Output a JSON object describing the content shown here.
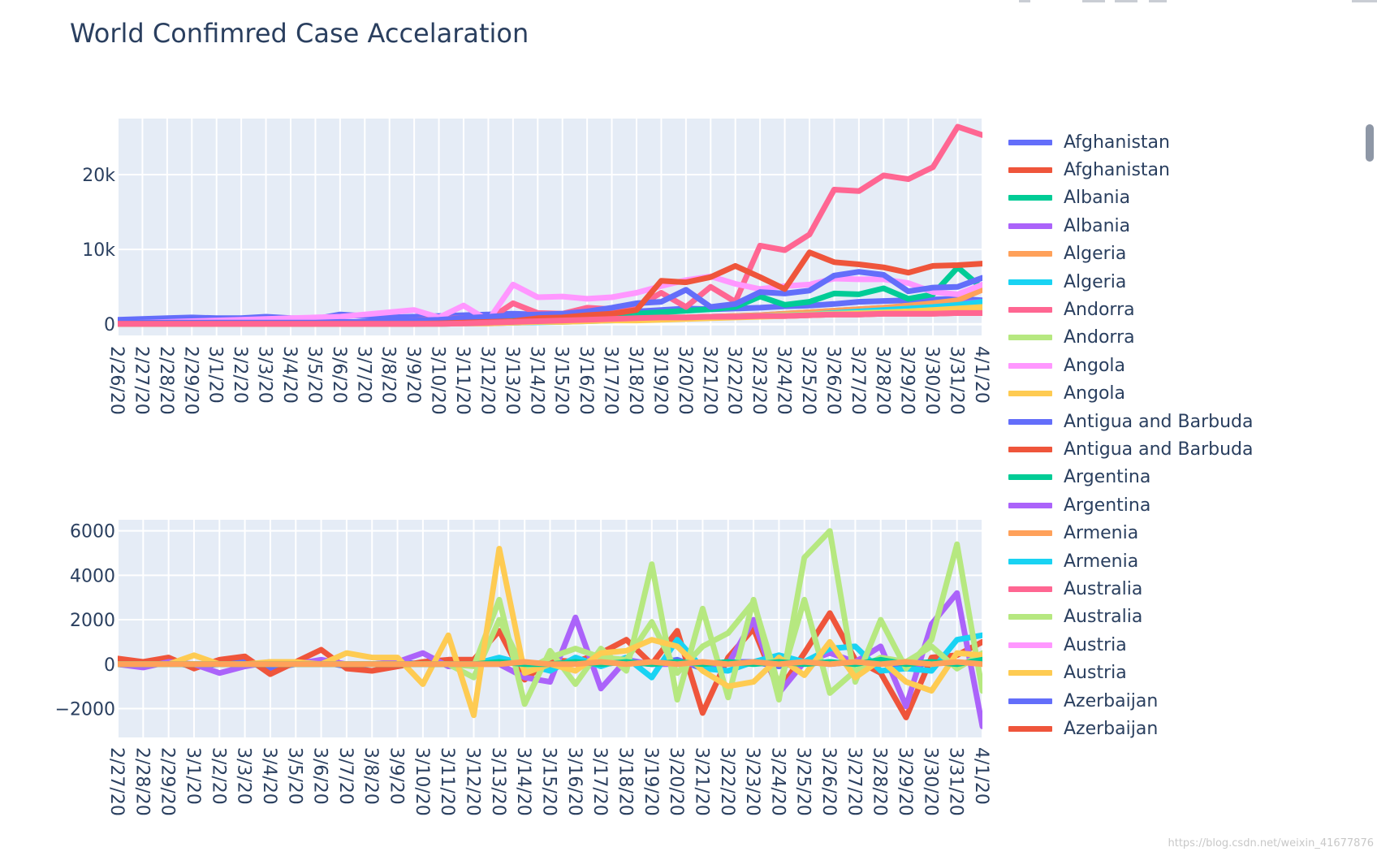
{
  "title": "World Confimred Case Accelaration",
  "watermark": "https://blog.csdn.net/weixin_41677876",
  "legend": [
    {
      "name": "Afghanistan",
      "color": "#636efa"
    },
    {
      "name": "Afghanistan",
      "color": "#ef553b"
    },
    {
      "name": "Albania",
      "color": "#00cc96"
    },
    {
      "name": "Albania",
      "color": "#ab63fa"
    },
    {
      "name": "Algeria",
      "color": "#ffa15a"
    },
    {
      "name": "Algeria",
      "color": "#19d3f3"
    },
    {
      "name": "Andorra",
      "color": "#ff6692"
    },
    {
      "name": "Andorra",
      "color": "#b6e880"
    },
    {
      "name": "Angola",
      "color": "#ff97ff"
    },
    {
      "name": "Angola",
      "color": "#fecb52"
    },
    {
      "name": "Antigua and Barbuda",
      "color": "#636efa"
    },
    {
      "name": "Antigua and Barbuda",
      "color": "#ef553b"
    },
    {
      "name": "Argentina",
      "color": "#00cc96"
    },
    {
      "name": "Argentina",
      "color": "#ab63fa"
    },
    {
      "name": "Armenia",
      "color": "#ffa15a"
    },
    {
      "name": "Armenia",
      "color": "#19d3f3"
    },
    {
      "name": "Australia",
      "color": "#ff6692"
    },
    {
      "name": "Australia",
      "color": "#b6e880"
    },
    {
      "name": "Austria",
      "color": "#ff97ff"
    },
    {
      "name": "Austria",
      "color": "#fecb52"
    },
    {
      "name": "Azerbaijan",
      "color": "#636efa"
    },
    {
      "name": "Azerbaijan",
      "color": "#ef553b"
    }
  ],
  "chart_data": [
    {
      "type": "line",
      "title": "",
      "xlabel": "",
      "ylabel": "",
      "ylim": [
        -1500,
        27500
      ],
      "yticks": [
        0,
        10000,
        20000
      ],
      "yticklabels": [
        "0",
        "10k",
        "20k"
      ],
      "x": [
        "2/26/20",
        "2/27/20",
        "2/28/20",
        "2/29/20",
        "3/1/20",
        "3/2/20",
        "3/3/20",
        "3/4/20",
        "3/5/20",
        "3/6/20",
        "3/7/20",
        "3/8/20",
        "3/9/20",
        "3/10/20",
        "3/11/20",
        "3/12/20",
        "3/13/20",
        "3/14/20",
        "3/15/20",
        "3/16/20",
        "3/17/20",
        "3/18/20",
        "3/19/20",
        "3/20/20",
        "3/21/20",
        "3/22/20",
        "3/23/20",
        "3/24/20",
        "3/25/20",
        "3/26/20",
        "3/27/20",
        "3/28/20",
        "3/29/20",
        "3/30/20",
        "3/31/20",
        "4/1/20"
      ],
      "series": [
        {
          "legend_index": 0,
          "values": [
            600,
            700,
            800,
            900,
            800,
            800,
            1000,
            800,
            700,
            1300,
            1100,
            900,
            1000,
            1100,
            1200,
            1300,
            1400,
            1300,
            1300,
            1400,
            1600,
            1700,
            1900,
            2100,
            2000,
            2100,
            2200,
            2400,
            2500,
            2700,
            3000,
            3100,
            3200,
            3300,
            3400,
            3200
          ]
        },
        {
          "legend_index": 1,
          "values": [
            150,
            150,
            150,
            150,
            150,
            150,
            150,
            150,
            150,
            150,
            150,
            150,
            150,
            200,
            200,
            200,
            300,
            400,
            500,
            600,
            700,
            800,
            900,
            900,
            1000,
            1000,
            1100,
            1100,
            1200,
            1300,
            1300,
            1400,
            1400,
            1400,
            1500,
            1500
          ]
        },
        {
          "legend_index": 2,
          "values": [
            100,
            100,
            100,
            100,
            100,
            100,
            100,
            100,
            100,
            100,
            100,
            100,
            100,
            150,
            200,
            300,
            500,
            700,
            900,
            1000,
            1200,
            1400,
            1600,
            1800,
            2000,
            2300,
            3700,
            2600,
            3000,
            4100,
            4000,
            4800,
            3400,
            4000,
            7600,
            4800
          ]
        },
        {
          "legend_index": 3,
          "values": [
            50,
            50,
            50,
            50,
            50,
            50,
            50,
            50,
            50,
            50,
            50,
            50,
            50,
            50,
            100,
            100,
            200,
            300,
            400,
            500,
            600,
            700,
            800,
            900,
            1000,
            1100,
            1200,
            1400,
            1600,
            1800,
            2000,
            2200,
            2400,
            2600,
            2800,
            3000
          ]
        },
        {
          "legend_index": 4,
          "values": [
            50,
            50,
            50,
            50,
            50,
            50,
            50,
            50,
            50,
            50,
            50,
            50,
            50,
            50,
            100,
            150,
            200,
            300,
            400,
            500,
            600,
            700,
            800,
            900,
            1000,
            1100,
            1200,
            1400,
            1600,
            1800,
            2000,
            2200,
            2500,
            2800,
            3200,
            4600
          ]
        },
        {
          "legend_index": 5,
          "values": [
            50,
            50,
            50,
            50,
            50,
            50,
            50,
            50,
            50,
            50,
            50,
            50,
            50,
            50,
            100,
            150,
            200,
            250,
            300,
            400,
            500,
            600,
            700,
            800,
            900,
            1000,
            1100,
            1200,
            1300,
            1500,
            1700,
            1900,
            2100,
            2300,
            2600,
            3000
          ]
        },
        {
          "legend_index": 6,
          "values": [
            100,
            100,
            100,
            100,
            100,
            100,
            100,
            100,
            100,
            100,
            200,
            300,
            500,
            700,
            800,
            600,
            2800,
            1500,
            1400,
            2200,
            2000,
            2300,
            4200,
            2300,
            5000,
            3000,
            10500,
            9900,
            12000,
            18000,
            17800,
            19900,
            19400,
            21000,
            26400,
            25300
          ]
        },
        {
          "legend_index": 7,
          "values": [
            50,
            50,
            50,
            50,
            50,
            50,
            50,
            50,
            50,
            50,
            100,
            100,
            200,
            200,
            300,
            300,
            400,
            400,
            500,
            500,
            600,
            600,
            700,
            800,
            900,
            1000,
            1100,
            1200,
            1300,
            1400,
            1500,
            1600,
            1700,
            1800,
            1900,
            2000
          ]
        },
        {
          "legend_index": 8,
          "values": [
            100,
            200,
            300,
            400,
            500,
            600,
            700,
            800,
            900,
            1000,
            1300,
            1600,
            1900,
            900,
            2500,
            500,
            5300,
            3600,
            3700,
            3400,
            3600,
            4200,
            5100,
            5900,
            6400,
            5400,
            4700,
            5100,
            5300,
            6100,
            6000,
            6000,
            5500,
            4300,
            4000,
            5300
          ]
        },
        {
          "legend_index": 9,
          "values": [
            50,
            50,
            50,
            50,
            50,
            50,
            50,
            50,
            50,
            50,
            50,
            50,
            50,
            50,
            100,
            100,
            200,
            300,
            300,
            400,
            500,
            500,
            600,
            700,
            800,
            900,
            1000,
            1100,
            1200,
            1300,
            1400,
            1500,
            1700,
            1900,
            2100,
            2300
          ]
        },
        {
          "legend_index": 10,
          "values": [
            200,
            200,
            200,
            200,
            200,
            200,
            200,
            200,
            200,
            300,
            300,
            400,
            500,
            600,
            800,
            1000,
            1200,
            1300,
            1400,
            1700,
            2200,
            2800,
            3000,
            4600,
            2300,
            2700,
            4300,
            4100,
            4500,
            6500,
            7000,
            6600,
            4400,
            4900,
            5000,
            6200
          ]
        },
        {
          "legend_index": 11,
          "values": [
            50,
            50,
            50,
            50,
            50,
            50,
            50,
            50,
            50,
            50,
            50,
            50,
            50,
            100,
            200,
            300,
            400,
            800,
            900,
            1200,
            1400,
            1900,
            5800,
            5600,
            6300,
            7800,
            6300,
            4700,
            9600,
            8300,
            8000,
            7600,
            6900,
            7800,
            7900,
            8100
          ]
        },
        {
          "legend_index": 16,
          "values": [
            50,
            50,
            50,
            50,
            50,
            50,
            50,
            50,
            50,
            50,
            50,
            50,
            50,
            50,
            100,
            200,
            300,
            400,
            500,
            600,
            700,
            800,
            900,
            900,
            1000,
            1000,
            1100,
            1100,
            1200,
            1300,
            1300,
            1400,
            1400,
            1400,
            1500,
            1500
          ]
        }
      ]
    },
    {
      "type": "line",
      "title": "",
      "xlabel": "",
      "ylabel": "",
      "ylim": [
        -3300,
        6500
      ],
      "yticks": [
        -2000,
        0,
        2000,
        4000,
        6000
      ],
      "yticklabels": [
        "−2000",
        "0",
        "2000",
        "4000",
        "6000"
      ],
      "x": [
        "2/27/20",
        "2/28/20",
        "2/29/20",
        "3/1/20",
        "3/2/20",
        "3/3/20",
        "3/4/20",
        "3/5/20",
        "3/6/20",
        "3/7/20",
        "3/8/20",
        "3/9/20",
        "3/10/20",
        "3/11/20",
        "3/12/20",
        "3/13/20",
        "3/14/20",
        "3/15/20",
        "3/16/20",
        "3/17/20",
        "3/18/20",
        "3/19/20",
        "3/20/20",
        "3/21/20",
        "3/22/20",
        "3/23/20",
        "3/24/20",
        "3/25/20",
        "3/26/20",
        "3/27/20",
        "3/28/20",
        "3/29/20",
        "3/30/20",
        "3/31/20",
        "4/1/20"
      ],
      "series": [
        {
          "legend_index": 0,
          "values": [
            0,
            -100,
            100,
            -100,
            0,
            100,
            -200,
            0,
            100,
            -100,
            0,
            100,
            0,
            100,
            0,
            100,
            0,
            -100,
            100,
            0,
            100,
            0,
            200,
            -200,
            100,
            100,
            -100,
            100,
            0,
            100,
            100,
            -200,
            100,
            0,
            200
          ]
        },
        {
          "legend_index": 1,
          "values": [
            250,
            100,
            300,
            -200,
            200,
            350,
            -450,
            100,
            650,
            -200,
            -300,
            -100,
            100,
            200,
            200,
            1500,
            -700,
            200,
            100,
            500,
            1100,
            0,
            1500,
            -2200,
            300,
            1600,
            -1200,
            500,
            2300,
            200,
            -400,
            -2400,
            300,
            400,
            1000
          ]
        },
        {
          "legend_index": 3,
          "values": [
            0,
            -150,
            100,
            0,
            -400,
            -100,
            100,
            0,
            200,
            0,
            0,
            100,
            500,
            -100,
            0,
            0,
            -600,
            -800,
            2100,
            -1100,
            200,
            0,
            0,
            0,
            0,
            2000,
            -1300,
            100,
            500,
            100,
            800,
            -1900,
            1800,
            3200,
            -2800
          ]
        },
        {
          "legend_index": 5,
          "values": [
            0,
            0,
            0,
            0,
            0,
            0,
            0,
            0,
            0,
            0,
            0,
            0,
            0,
            0,
            0,
            300,
            0,
            -300,
            300,
            -100,
            300,
            -600,
            1100,
            -200,
            -300,
            100,
            400,
            100,
            700,
            800,
            -300,
            -200,
            -300,
            1100,
            1300
          ]
        },
        {
          "legend_index": 7,
          "values": [
            0,
            0,
            0,
            0,
            0,
            0,
            0,
            0,
            0,
            0,
            0,
            0,
            0,
            0,
            -100,
            2900,
            -1800,
            600,
            -900,
            700,
            -300,
            4500,
            -1600,
            2500,
            -1500,
            2900,
            -1600,
            4800,
            6000,
            -800,
            2000,
            -200,
            1100,
            5400,
            -1200
          ]
        },
        {
          "legend_index": 17,
          "values": [
            0,
            0,
            0,
            0,
            0,
            0,
            0,
            0,
            0,
            0,
            0,
            0,
            0,
            0,
            -600,
            2000,
            -300,
            300,
            700,
            300,
            200,
            1900,
            -400,
            800,
            1400,
            2800,
            -1000,
            2900,
            -1300,
            -300,
            300,
            100,
            800,
            -200,
            500
          ]
        },
        {
          "legend_index": 9,
          "values": [
            0,
            0,
            0,
            400,
            0,
            0,
            100,
            100,
            0,
            500,
            300,
            300,
            -900,
            1300,
            -2300,
            5200,
            -400,
            0,
            -300,
            500,
            600,
            1100,
            800,
            -300,
            -1000,
            -800,
            300,
            -500,
            1000,
            -600,
            200,
            -800,
            -1200,
            500,
            400
          ]
        },
        {
          "legend_index": 2,
          "values": [
            0,
            0,
            0,
            0,
            0,
            0,
            0,
            0,
            0,
            0,
            0,
            0,
            0,
            0,
            0,
            100,
            0,
            0,
            100,
            0,
            100,
            0,
            100,
            0,
            100,
            0,
            100,
            0,
            100,
            0,
            200,
            0,
            100,
            0,
            200
          ]
        },
        {
          "legend_index": 4,
          "values": [
            0,
            0,
            0,
            0,
            0,
            0,
            0,
            0,
            0,
            0,
            0,
            0,
            0,
            0,
            0,
            0,
            100,
            0,
            0,
            100,
            0,
            100,
            0,
            100,
            0,
            100,
            0,
            100,
            0,
            100,
            0,
            100,
            0,
            100,
            0
          ]
        }
      ]
    }
  ]
}
